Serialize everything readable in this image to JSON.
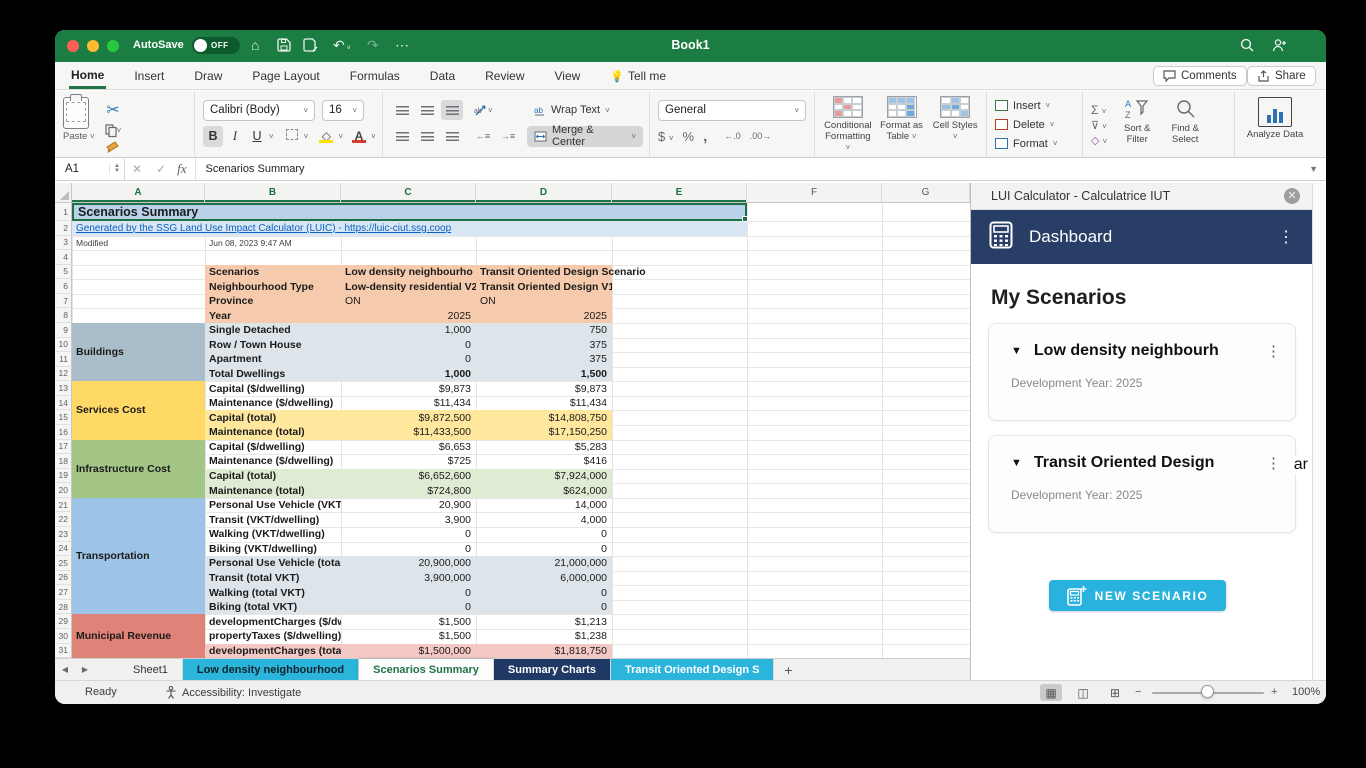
{
  "colors": {
    "excel_green": "#1b7d41",
    "tab_accent": "#217346",
    "pane_navy": "#283e66",
    "new_button_cyan": "#29b2dd",
    "sheet_tab_cyan": "#2bb5db",
    "sheet_tab_navy": "#1f3864",
    "selection_fill": "#b9d2e9",
    "hyperlink": "#0b61c2"
  },
  "titlebar": {
    "autosave_label": "AutoSave",
    "autosave_state": "OFF",
    "title": "Book1"
  },
  "menu": {
    "tabs": [
      {
        "label": "Home",
        "active": true
      },
      {
        "label": "Insert"
      },
      {
        "label": "Draw"
      },
      {
        "label": "Page Layout"
      },
      {
        "label": "Formulas"
      },
      {
        "label": "Data"
      },
      {
        "label": "Review"
      },
      {
        "label": "View"
      },
      {
        "label": "Tell me",
        "bulb": true
      }
    ],
    "comments": "Comments",
    "share": "Share"
  },
  "ribbon": {
    "paste": "Paste",
    "font_name": "Calibri (Body)",
    "font_size": "16",
    "wrap_text": "Wrap Text",
    "merge_center": "Merge & Center",
    "number_format": "General",
    "cond_fmt": "Conditional Formatting",
    "fmt_table": "Format as Table",
    "cell_styles": "Cell Styles",
    "insert": "Insert",
    "delete": "Delete",
    "format": "Format",
    "sort_filter": "Sort & Filter",
    "find_select": "Find & Select",
    "analyze": "Analyze Data"
  },
  "formula_bar": {
    "name_box": "A1",
    "fx": "fx",
    "value": "Scenarios Summary"
  },
  "sheet": {
    "columns": [
      {
        "label": "A",
        "selected": true
      },
      {
        "label": "B",
        "selected": true
      },
      {
        "label": "C",
        "selected": true
      },
      {
        "label": "D",
        "selected": true
      },
      {
        "label": "E",
        "selected": true
      },
      {
        "label": "F",
        "selected": false
      },
      {
        "label": "G",
        "selected": false
      }
    ],
    "title": "Scenarios Summary",
    "link": "Generated by the SSG Land Use Impact Calculator (LUIC) - https://luic-ciut.ssg.coop",
    "modified_label": "Modified",
    "modified_value": "Jun 08, 2023 9:47 AM",
    "band_colors": {
      "orange": "#f6cbad",
      "bluegray": "#dde5ea",
      "yellow": "#ffe79e",
      "green": "#dfebd3",
      "pink": "#f3c8c5",
      "white": ""
    },
    "groups": [
      {
        "label": "Buildings",
        "from": 9,
        "to": 12,
        "color": "#a9bec8"
      },
      {
        "label": "Services Cost",
        "from": 13,
        "to": 16,
        "color": "#ffd966"
      },
      {
        "label": "Infrastructure Cost",
        "from": 17,
        "to": 20,
        "color": "#a3c585"
      },
      {
        "label": "Transportation",
        "from": 21,
        "to": 28,
        "color": "#9dc3e6"
      },
      {
        "label": "Municipal Revenue",
        "from": 29,
        "to": 31,
        "color": "#df8278"
      }
    ],
    "data_rows": [
      {
        "n": 5,
        "b": "Scenarios",
        "c": "Low density neighbourho",
        "d": "Transit Oriented Design Scenario",
        "band": "orange",
        "text_cells": true,
        "value_bold": true,
        "d_spill": true
      },
      {
        "n": 6,
        "b": "Neighbourhood Type",
        "c": "Low-density residential V2",
        "d": "Transit Oriented Design V1",
        "band": "orange",
        "text_cells": true,
        "value_bold": true
      },
      {
        "n": 7,
        "b": "Province",
        "c": "ON",
        "d": "ON",
        "band": "orange",
        "text_cells": true
      },
      {
        "n": 8,
        "b": "Year",
        "c": "2025",
        "d": "2025",
        "band": "orange"
      },
      {
        "n": 9,
        "b": "Single Detached",
        "c": "1,000",
        "d": "750",
        "band": "bluegray"
      },
      {
        "n": 10,
        "b": "Row / Town House",
        "c": "0",
        "d": "375",
        "band": "bluegray"
      },
      {
        "n": 11,
        "b": "Apartment",
        "c": "0",
        "d": "375",
        "band": "bluegray"
      },
      {
        "n": 12,
        "b": "Total Dwellings",
        "c": "1,000",
        "d": "1,500",
        "band": "bluegray",
        "value_bold": true
      },
      {
        "n": 13,
        "b": "Capital ($/dwelling)",
        "c": "$9,873",
        "d": "$9,873",
        "band": "white"
      },
      {
        "n": 14,
        "b": "Maintenance ($/dwelling)",
        "c": "$11,434",
        "d": "$11,434",
        "band": "white"
      },
      {
        "n": 15,
        "b": "Capital (total)",
        "c": "$9,872,500",
        "d": "$14,808,750",
        "band": "yellow"
      },
      {
        "n": 16,
        "b": "Maintenance (total)",
        "c": "$11,433,500",
        "d": "$17,150,250",
        "band": "yellow"
      },
      {
        "n": 17,
        "b": "Capital ($/dwelling)",
        "c": "$6,653",
        "d": "$5,283",
        "band": "white"
      },
      {
        "n": 18,
        "b": "Maintenance ($/dwelling)",
        "c": "$725",
        "d": "$416",
        "band": "white"
      },
      {
        "n": 19,
        "b": "Capital (total)",
        "c": "$6,652,600",
        "d": "$7,924,000",
        "band": "green"
      },
      {
        "n": 20,
        "b": "Maintenance (total)",
        "c": "$724,800",
        "d": "$624,000",
        "band": "green"
      },
      {
        "n": 21,
        "b": "Personal Use Vehicle (VKT/dw",
        "c": "20,900",
        "d": "14,000",
        "band": "white"
      },
      {
        "n": 22,
        "b": "Transit (VKT/dwelling)",
        "c": "3,900",
        "d": "4,000",
        "band": "white"
      },
      {
        "n": 23,
        "b": "Walking (VKT/dwelling)",
        "c": "0",
        "d": "0",
        "band": "white"
      },
      {
        "n": 24,
        "b": "Biking (VKT/dwelling)",
        "c": "0",
        "d": "0",
        "band": "white"
      },
      {
        "n": 25,
        "b": "Personal Use Vehicle (total VK",
        "c": "20,900,000",
        "d": "21,000,000",
        "band": "bluegray"
      },
      {
        "n": 26,
        "b": "Transit (total VKT)",
        "c": "3,900,000",
        "d": "6,000,000",
        "band": "bluegray"
      },
      {
        "n": 27,
        "b": "Walking (total VKT)",
        "c": "0",
        "d": "0",
        "band": "bluegray"
      },
      {
        "n": 28,
        "b": "Biking (total VKT)",
        "c": "0",
        "d": "0",
        "band": "bluegray"
      },
      {
        "n": 29,
        "b": "developmentCharges ($/dwel",
        "c": "$1,500",
        "d": "$1,213",
        "band": "white"
      },
      {
        "n": 30,
        "b": "propertyTaxes ($/dwelling)",
        "c": "$1,500",
        "d": "$1,238",
        "band": "white"
      },
      {
        "n": 31,
        "b": "developmentCharges (total)",
        "c": "$1,500,000",
        "d": "$1,818,750",
        "band": "pink"
      }
    ]
  },
  "sheet_tabs": {
    "items": [
      {
        "label": "Sheet1",
        "style": "plain"
      },
      {
        "label": "Low density neighbourhood",
        "style": "cyan-dark"
      },
      {
        "label": "Scenarios Summary",
        "style": "active"
      },
      {
        "label": "Summary Charts",
        "style": "navy"
      },
      {
        "label": "Transit Oriented Design S",
        "style": "cyan-white"
      }
    ],
    "add": "+"
  },
  "status_bar": {
    "ready": "Ready",
    "accessibility": "Accessibility: Investigate",
    "zoom_level": "100%"
  },
  "task_pane": {
    "window_title": "LUI Calculator - Calculatrice IUT",
    "header": "Dashboard",
    "section_title": "My Scenarios",
    "cards": [
      {
        "name": "Low density neighbourh",
        "meta": "Development Year: 2025"
      },
      {
        "name": "Transit Oriented Design",
        "meta": "Development Year: 2025",
        "overflow_fragment": "ar"
      }
    ],
    "new_button": "NEW SCENARIO"
  }
}
